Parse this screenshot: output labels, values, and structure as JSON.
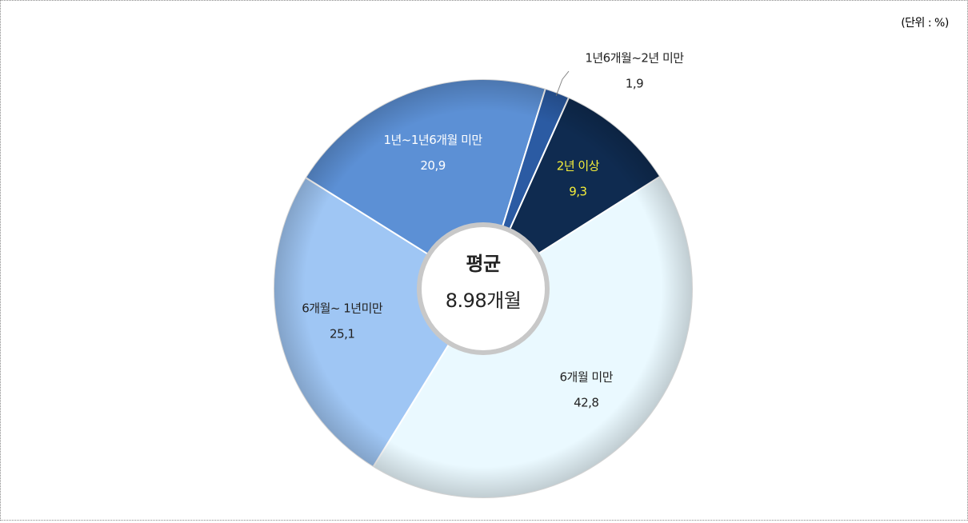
{
  "chart_data": {
    "type": "donut",
    "unit_label": "(단위 : %)",
    "center_title": "평균",
    "center_value": "8.98개월",
    "categories": [
      "6개월 미만",
      "6개월~ 1년미만",
      "1년~1년6개월 미만",
      "1년6개월~2년 미만",
      "2년 이상"
    ],
    "values": [
      42.8,
      25.1,
      20.9,
      1.9,
      9.3
    ],
    "value_labels": [
      "42,8",
      "25,1",
      "20,9",
      "1,9",
      "9,3"
    ],
    "colors": [
      "#eaf9ff",
      "#9fc6f4",
      "#5c90d5",
      "#2b5ba3",
      "#0f2b50"
    ],
    "label_colors": [
      "#222222",
      "#222222",
      "#ffffff",
      "#222222",
      "#f5ee3a"
    ]
  }
}
